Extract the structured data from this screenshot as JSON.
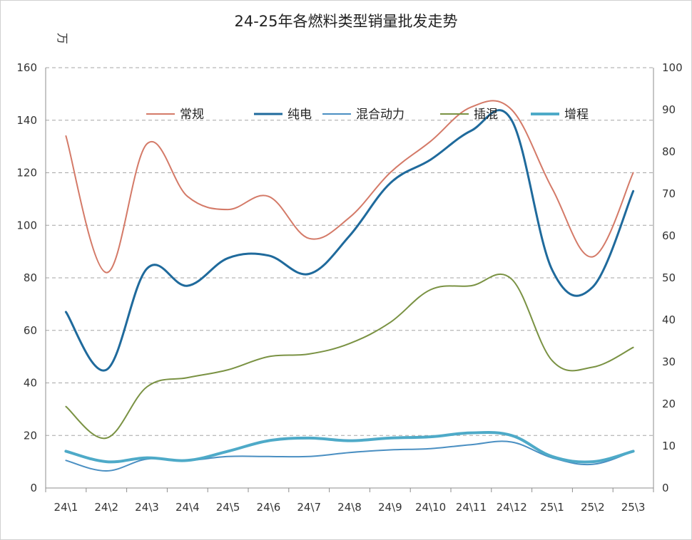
{
  "chart_data": {
    "type": "line",
    "title": "24-25年各燃料类型销量批发走势",
    "y_unit": "万",
    "categories": [
      "24\\1",
      "24\\2",
      "24\\3",
      "24\\4",
      "24\\5",
      "24\\6",
      "24\\7",
      "24\\8",
      "24\\9",
      "24\\10",
      "24\\11",
      "24\\12",
      "25\\1",
      "25\\2",
      "25\\3"
    ],
    "ylim": [
      0,
      160
    ],
    "yticks": [
      0,
      20,
      40,
      60,
      80,
      100,
      120,
      140,
      160
    ],
    "y2lim": [
      0,
      100
    ],
    "y2ticks": [
      0,
      10,
      20,
      30,
      40,
      50,
      60,
      70,
      80,
      90,
      100
    ],
    "grid": true,
    "legend_position": "top-center",
    "series": [
      {
        "name": "常规",
        "color": "#d47a68",
        "width": 2,
        "values": [
          134,
          82,
          131,
          111,
          106,
          111,
          95,
          103,
          120,
          132,
          145,
          144,
          114,
          88,
          120
        ]
      },
      {
        "name": "纯电",
        "color": "#1f6a9c",
        "width": 3,
        "values": [
          67,
          45,
          83.5,
          77,
          87.5,
          88.5,
          81.5,
          96,
          116,
          125,
          136,
          140,
          83,
          76.5,
          113
        ]
      },
      {
        "name": "混合动力",
        "color": "#4a8fc2",
        "width": 2,
        "values": [
          10.5,
          6.5,
          11,
          10.5,
          12,
          12,
          12,
          13.5,
          14.5,
          15,
          16.5,
          17.5,
          11.5,
          9,
          14
        ]
      },
      {
        "name": "插混",
        "color": "#7a9243",
        "width": 2,
        "values": [
          31,
          19,
          38.5,
          42,
          45,
          50,
          51,
          55,
          63,
          75.5,
          77,
          79.5,
          48.5,
          46,
          53.5
        ]
      },
      {
        "name": "增程",
        "color": "#4eaac8",
        "width": 4,
        "values": [
          14,
          10,
          11.5,
          10.5,
          14,
          18,
          19,
          18,
          19,
          19.5,
          21,
          20,
          12,
          10,
          14
        ]
      }
    ]
  }
}
